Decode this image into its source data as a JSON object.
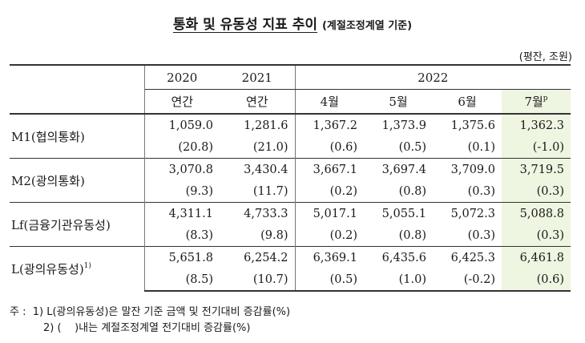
{
  "title": {
    "main": "통화 및 유동성 지표 추이",
    "sub": "(계절조정계열 기준)"
  },
  "unit": "(평잔, 조원)",
  "header": {
    "years": [
      "2020",
      "2021",
      "2022"
    ],
    "periods": [
      "연간",
      "연간",
      "4월",
      "5월",
      "6월",
      "7월"
    ],
    "prelim_mark": "p"
  },
  "rows": [
    {
      "label": "M1(협의통화)",
      "sup": "",
      "values": [
        "1,059.0",
        "1,281.6",
        "1,367.2",
        "1,373.9",
        "1,375.6",
        "1,362.3"
      ],
      "changes": [
        "(20.8)",
        "(21.0)",
        "(0.6)",
        "(0.5)",
        "(0.1)",
        "(-1.0)"
      ]
    },
    {
      "label": "M2(광의통화)",
      "sup": "",
      "values": [
        "3,070.8",
        "3,430.4",
        "3,667.1",
        "3,697.4",
        "3,709.0",
        "3,719.5"
      ],
      "changes": [
        "(9.3)",
        "(11.7)",
        "(0.2)",
        "(0.8)",
        "(0.3)",
        "(0.3)"
      ]
    },
    {
      "label": "Lf(금융기관유동성)",
      "sup": "",
      "values": [
        "4,311.1",
        "4,733.3",
        "5,017.1",
        "5,055.1",
        "5,072.3",
        "5,088.8"
      ],
      "changes": [
        "(8.3)",
        "(9.8)",
        "(0.2)",
        "(0.8)",
        "(0.3)",
        "(0.3)"
      ]
    },
    {
      "label": "L(광의유동성)",
      "sup": "1)",
      "values": [
        "5,651.8",
        "6,254.2",
        "6,369.1",
        "6,435.6",
        "6,425.3",
        "6,461.8"
      ],
      "changes": [
        "(8.5)",
        "(10.7)",
        "(0.5)",
        "(1.0)",
        "(-0.2)",
        "(0.6)"
      ]
    }
  ],
  "notes": {
    "note1": "주 :  1) L(광의유동성)은 말잔 기준 금액 및 전기대비 증감률(%)",
    "note2": "2) (    )내는 계절조정계열 전기대비 증감률(%)"
  },
  "colors": {
    "highlight": "#eef5e1"
  }
}
